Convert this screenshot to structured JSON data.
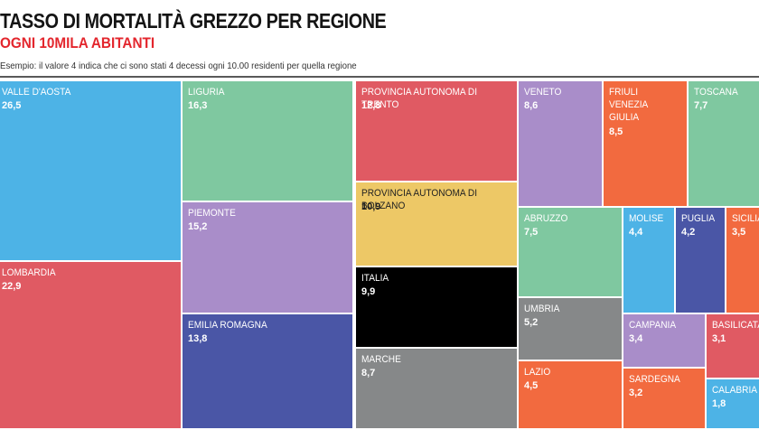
{
  "header": {
    "title": "TASSO DI MORTALITÀ GREZZO PER REGIONE",
    "subtitle": "OGNI 10MILA ABITANTI",
    "note": "Esempio: il valore 4 indica che ci sono stati 4 decessi ogni 10.00 residenti per quella regione"
  },
  "chart_data": {
    "type": "treemap",
    "title": "TASSO DI MORTALITÀ GREZZO PER REGIONE",
    "subtitle": "OGNI 10MILA ABITANTI",
    "items": [
      {
        "label": "VALLE D'AOSTA",
        "value": 26.5,
        "display": "26,5",
        "color": "#4db3e6"
      },
      {
        "label": "LOMBARDIA",
        "value": 22.9,
        "display": "22,9",
        "color": "#e05a63"
      },
      {
        "label": "LIGURIA",
        "value": 16.3,
        "display": "16,3",
        "color": "#7fc8a0"
      },
      {
        "label": "PIEMONTE",
        "value": 15.2,
        "display": "15,2",
        "color": "#a98dc9"
      },
      {
        "label": "EMILIA ROMAGNA",
        "value": 13.8,
        "display": "13,8",
        "color": "#4a56a6"
      },
      {
        "label": "PROVINCIA AUTONOMA DI TRENTO",
        "value": 12.8,
        "display": "12,8",
        "color": "#e05a63"
      },
      {
        "label": "PROVINCIA AUTONOMA DI BOLZANO",
        "value": 10.9,
        "display": "10,9",
        "color": "#edc866"
      },
      {
        "label": "ITALIA",
        "value": 9.9,
        "display": "9,9",
        "color": "#000000"
      },
      {
        "label": "MARCHE",
        "value": 8.7,
        "display": "8,7",
        "color": "#868889"
      },
      {
        "label": "VENETO",
        "value": 8.6,
        "display": "8,6",
        "color": "#a98dc9"
      },
      {
        "label": "FRIULI VENEZIA GIULIA",
        "value": 8.5,
        "display": "8,5",
        "color": "#f26a3f"
      },
      {
        "label": "TOSCANA",
        "value": 7.7,
        "display": "7,7",
        "color": "#7fc8a0"
      },
      {
        "label": "ABRUZZO",
        "value": 7.5,
        "display": "7,5",
        "color": "#7fc8a0"
      },
      {
        "label": "MOLISE",
        "value": 4.4,
        "display": "4,4",
        "color": "#4db3e6"
      },
      {
        "label": "PUGLIA",
        "value": 4.2,
        "display": "4,2",
        "color": "#4a56a6"
      },
      {
        "label": "SICILIA",
        "value": 3.5,
        "display": "3,5",
        "color": "#f26a3f"
      },
      {
        "label": "UMBRIA",
        "value": 5.2,
        "display": "5,2",
        "color": "#868889"
      },
      {
        "label": "CAMPANIA",
        "value": 3.4,
        "display": "3,4",
        "color": "#a98dc9"
      },
      {
        "label": "BASILICATA",
        "value": 3.1,
        "display": "3,1",
        "color": "#e05a63"
      },
      {
        "label": "LAZIO",
        "value": 4.5,
        "display": "4,5",
        "color": "#f26a3f"
      },
      {
        "label": "SARDEGNA",
        "value": 3.2,
        "display": "3,2",
        "color": "#f26a3f"
      },
      {
        "label": "CALABRIA",
        "value": 1.8,
        "display": "1,8",
        "color": "#4db3e6"
      }
    ]
  }
}
